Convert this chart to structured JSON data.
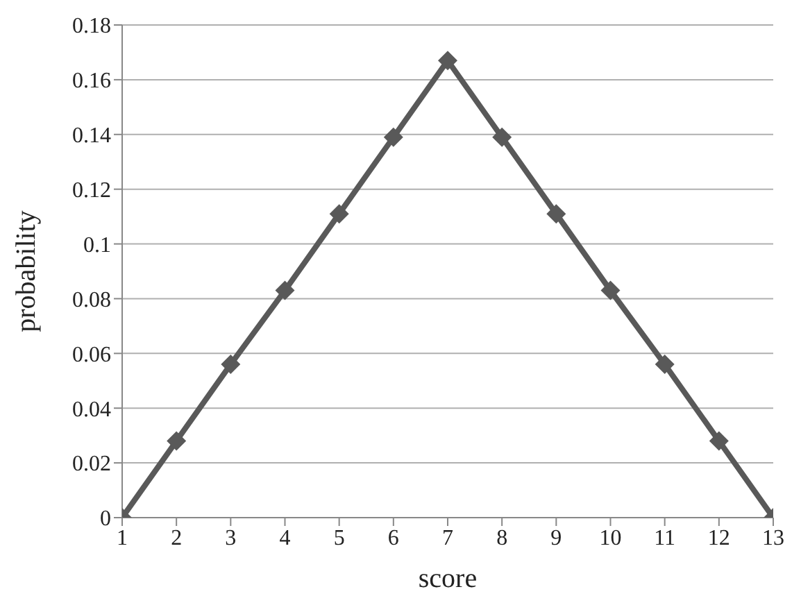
{
  "chart_data": {
    "type": "line",
    "xlabel": "score",
    "ylabel": "probability",
    "x": [
      1,
      2,
      3,
      4,
      5,
      6,
      7,
      8,
      9,
      10,
      11,
      12,
      13
    ],
    "series": [
      {
        "color": "#595959",
        "values": [
          0,
          0.028,
          0.056,
          0.083,
          0.111,
          0.139,
          0.167,
          0.139,
          0.111,
          0.083,
          0.056,
          0.028,
          0
        ]
      }
    ],
    "xlim": [
      1,
      13
    ],
    "xticks": [
      1,
      2,
      3,
      4,
      5,
      6,
      7,
      8,
      9,
      10,
      11,
      12,
      13
    ],
    "ylim": [
      0,
      0.18
    ],
    "yticks": [
      0,
      0.02,
      0.04,
      0.06,
      0.08,
      0.1,
      0.12,
      0.14,
      0.16,
      0.18
    ],
    "grid": "y",
    "marker": "diamond",
    "line_style": "solid",
    "legend": false
  }
}
